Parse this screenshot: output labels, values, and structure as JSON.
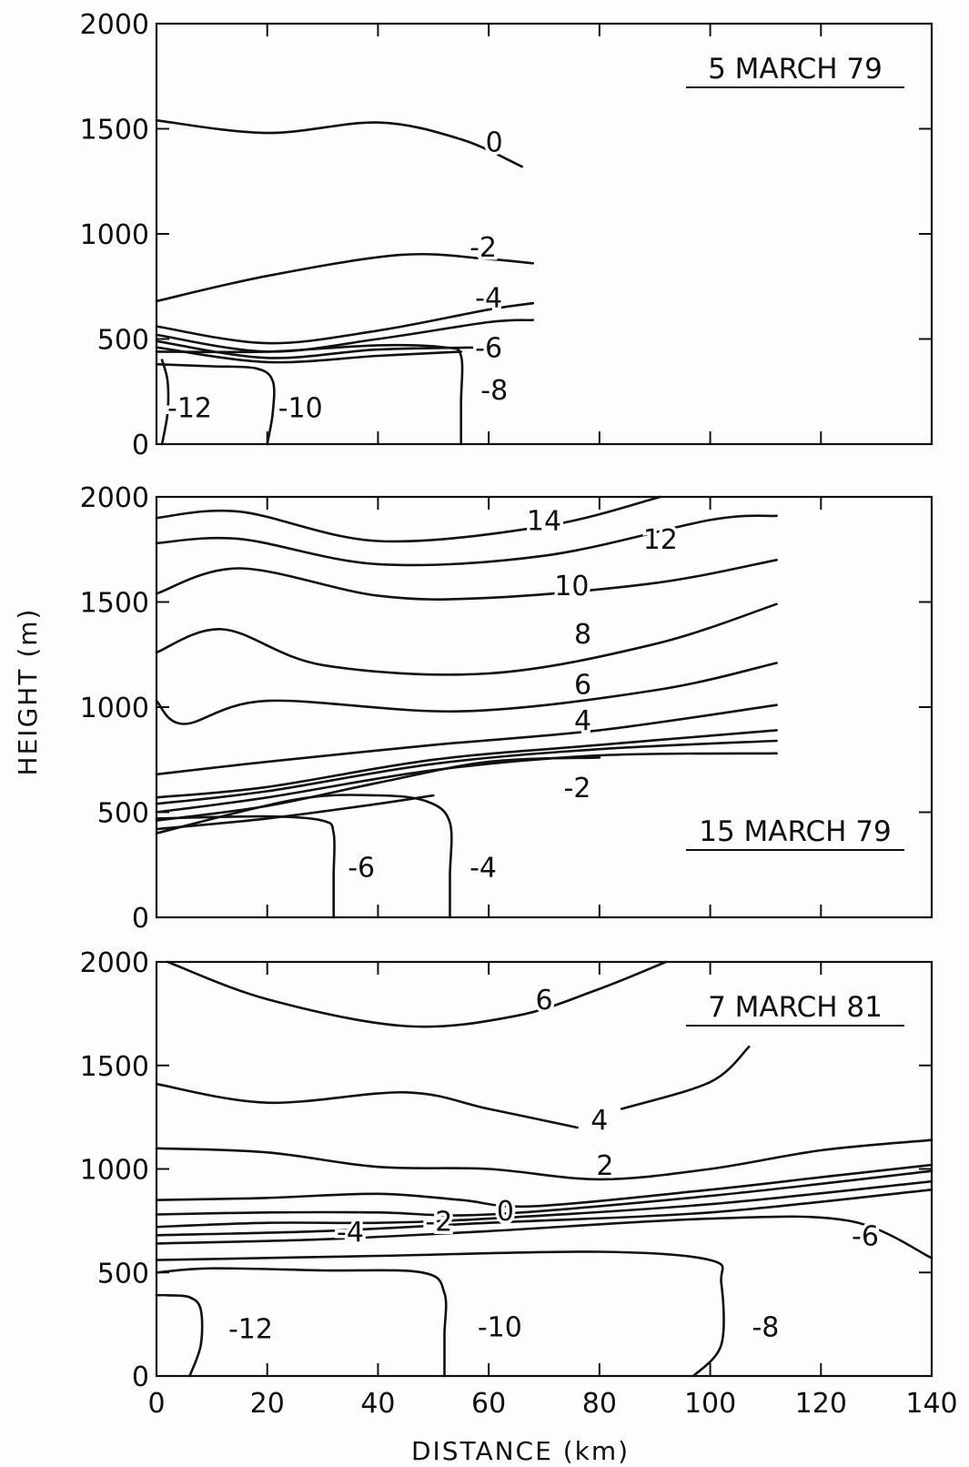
{
  "chart_data": [
    {
      "type": "contour",
      "date": "5 MARCH 79",
      "x_range": [
        0,
        140
      ],
      "y_range": [
        0,
        2000
      ],
      "y_ticks": [
        "0",
        "500",
        "1000",
        "1500",
        "2000"
      ],
      "contours": [
        {
          "level": "0",
          "points": [
            [
              0,
              1540
            ],
            [
              20,
              1480
            ],
            [
              40,
              1530
            ],
            [
              55,
              1450
            ],
            [
              66,
              1320
            ]
          ]
        },
        {
          "level": "-2",
          "points": [
            [
              0,
              680
            ],
            [
              20,
              800
            ],
            [
              44,
              900
            ],
            [
              60,
              880
            ],
            [
              68,
              860
            ]
          ]
        },
        {
          "level": "-4",
          "points": [
            [
              0,
              560
            ],
            [
              20,
              480
            ],
            [
              40,
              540
            ],
            [
              60,
              640
            ],
            [
              68,
              670
            ]
          ]
        },
        {
          "level": "-6",
          "points": [
            [
              0,
              520
            ],
            [
              20,
              440
            ],
            [
              40,
              500
            ],
            [
              60,
              580
            ],
            [
              68,
              590
            ]
          ]
        },
        {
          "level": "",
          "points": [
            [
              0,
              490
            ],
            [
              20,
              410
            ],
            [
              40,
              450
            ],
            [
              60,
              460
            ]
          ]
        },
        {
          "level": "",
          "points": [
            [
              0,
              460
            ],
            [
              20,
              390
            ],
            [
              40,
              420
            ],
            [
              55,
              440
            ]
          ]
        },
        {
          "level": "-8",
          "points": [
            [
              55,
              0
            ],
            [
              55,
              200
            ],
            [
              55,
              420
            ],
            [
              52,
              460
            ],
            [
              40,
              470
            ],
            [
              20,
              440
            ],
            [
              0,
              440
            ]
          ]
        },
        {
          "level": "-10",
          "points": [
            [
              20,
              0
            ],
            [
              21,
              150
            ],
            [
              21,
              300
            ],
            [
              18,
              360
            ],
            [
              10,
              370
            ],
            [
              0,
              380
            ]
          ]
        },
        {
          "level": "-12",
          "points": [
            [
              1,
              0
            ],
            [
              2,
              150
            ],
            [
              2,
              300
            ],
            [
              1,
              400
            ]
          ]
        }
      ],
      "contour_labels": [
        {
          "text": "0",
          "x": 61,
          "y": 1440
        },
        {
          "text": "-2",
          "x": 59,
          "y": 940
        },
        {
          "text": "-4",
          "x": 60,
          "y": 700
        },
        {
          "text": "-6",
          "x": 60,
          "y": 460
        },
        {
          "text": "-8",
          "x": 61,
          "y": 260
        },
        {
          "text": "-10",
          "x": 26,
          "y": 175
        },
        {
          "text": "-12",
          "x": 6,
          "y": 175
        }
      ]
    },
    {
      "type": "contour",
      "date": "15 MARCH 79",
      "x_range": [
        0,
        140
      ],
      "y_range": [
        0,
        2000
      ],
      "y_ticks": [
        "0",
        "500",
        "1000",
        "1500",
        "2000"
      ],
      "contours": [
        {
          "level": "14",
          "points": [
            [
              0,
              1900
            ],
            [
              15,
              1930
            ],
            [
              40,
              1790
            ],
            [
              70,
              1860
            ],
            [
              91,
              2000
            ]
          ]
        },
        {
          "level": "12",
          "points": [
            [
              0,
              1780
            ],
            [
              15,
              1800
            ],
            [
              40,
              1680
            ],
            [
              70,
              1720
            ],
            [
              100,
              1890
            ],
            [
              112,
              1910
            ]
          ]
        },
        {
          "level": "10",
          "points": [
            [
              0,
              1540
            ],
            [
              15,
              1660
            ],
            [
              40,
              1530
            ],
            [
              60,
              1520
            ],
            [
              90,
              1590
            ],
            [
              112,
              1700
            ]
          ]
        },
        {
          "level": "8",
          "points": [
            [
              0,
              1260
            ],
            [
              12,
              1370
            ],
            [
              30,
              1200
            ],
            [
              60,
              1160
            ],
            [
              90,
              1300
            ],
            [
              112,
              1490
            ]
          ]
        },
        {
          "level": "6",
          "points": [
            [
              0,
              1030
            ],
            [
              5,
              920
            ],
            [
              20,
              1030
            ],
            [
              55,
              980
            ],
            [
              90,
              1080
            ],
            [
              112,
              1210
            ]
          ]
        },
        {
          "level": "4",
          "points": [
            [
              0,
              680
            ],
            [
              20,
              740
            ],
            [
              50,
              820
            ],
            [
              80,
              890
            ],
            [
              112,
              1010
            ]
          ]
        },
        {
          "level": "",
          "points": [
            [
              0,
              570
            ],
            [
              20,
              620
            ],
            [
              50,
              750
            ],
            [
              80,
              820
            ],
            [
              112,
              890
            ]
          ]
        },
        {
          "level": "",
          "points": [
            [
              0,
              540
            ],
            [
              20,
              600
            ],
            [
              50,
              730
            ],
            [
              80,
              800
            ],
            [
              112,
              840
            ]
          ]
        },
        {
          "level": "-2",
          "points": [
            [
              0,
              500
            ],
            [
              20,
              570
            ],
            [
              50,
              700
            ],
            [
              80,
              770
            ],
            [
              112,
              780
            ]
          ]
        },
        {
          "level": "",
          "points": [
            [
              0,
              460
            ],
            [
              20,
              530
            ],
            [
              40,
              640
            ],
            [
              60,
              740
            ],
            [
              80,
              760
            ]
          ]
        },
        {
          "level": "",
          "points": [
            [
              0,
              420
            ],
            [
              20,
              470
            ],
            [
              40,
              540
            ],
            [
              50,
              580
            ]
          ]
        },
        {
          "level": "-4",
          "points": [
            [
              53,
              0
            ],
            [
              53,
              200
            ],
            [
              53,
              450
            ],
            [
              49,
              550
            ],
            [
              40,
              580
            ],
            [
              25,
              560
            ],
            [
              0,
              400
            ]
          ]
        },
        {
          "level": "-6",
          "points": [
            [
              32,
              0
            ],
            [
              32,
              200
            ],
            [
              32,
              400
            ],
            [
              30,
              460
            ],
            [
              20,
              480
            ],
            [
              0,
              470
            ]
          ]
        }
      ],
      "contour_labels": [
        {
          "text": "14",
          "x": 70,
          "y": 1890
        },
        {
          "text": "12",
          "x": 91,
          "y": 1800
        },
        {
          "text": "10",
          "x": 75,
          "y": 1580
        },
        {
          "text": "8",
          "x": 77,
          "y": 1350
        },
        {
          "text": "6",
          "x": 77,
          "y": 1110
        },
        {
          "text": "4",
          "x": 77,
          "y": 940
        },
        {
          "text": "-2",
          "x": 76,
          "y": 620
        },
        {
          "text": "-4",
          "x": 59,
          "y": 240
        },
        {
          "text": "-6",
          "x": 37,
          "y": 240
        }
      ]
    },
    {
      "type": "contour",
      "date": "7 MARCH 81",
      "x_range": [
        0,
        140
      ],
      "y_range": [
        0,
        2000
      ],
      "y_ticks": [
        "0",
        "500",
        "1000",
        "1500",
        "2000"
      ],
      "x_ticks": [
        "0",
        "20",
        "40",
        "60",
        "80",
        "100",
        "120",
        "140"
      ],
      "x_label": "DISTANCE (km)",
      "y_label": "HEIGHT (m)",
      "contours": [
        {
          "level": "6",
          "points": [
            [
              2,
              2000
            ],
            [
              20,
              1820
            ],
            [
              45,
              1690
            ],
            [
              65,
              1740
            ],
            [
              80,
              1870
            ],
            [
              92,
              2000
            ]
          ]
        },
        {
          "level": "4",
          "points": [
            [
              0,
              1410
            ],
            [
              20,
              1320
            ],
            [
              45,
              1370
            ],
            [
              60,
              1290
            ],
            [
              76,
              1200
            ]
          ]
        },
        {
          "level": "4",
          "points": [
            [
              84,
              1290
            ],
            [
              100,
              1420
            ],
            [
              107,
              1590
            ]
          ]
        },
        {
          "level": "2",
          "points": [
            [
              0,
              1100
            ],
            [
              20,
              1080
            ],
            [
              40,
              1010
            ],
            [
              60,
              1000
            ],
            [
              80,
              950
            ],
            [
              100,
              1000
            ],
            [
              120,
              1090
            ],
            [
              140,
              1140
            ]
          ]
        },
        {
          "level": "0",
          "points": [
            [
              0,
              850
            ],
            [
              20,
              860
            ],
            [
              40,
              880
            ],
            [
              55,
              850
            ],
            [
              68,
              820
            ],
            [
              100,
              900
            ],
            [
              120,
              960
            ],
            [
              140,
              1020
            ]
          ]
        },
        {
          "level": "-2",
          "points": [
            [
              0,
              780
            ],
            [
              20,
              790
            ],
            [
              40,
              790
            ],
            [
              60,
              780
            ],
            [
              100,
              870
            ],
            [
              140,
              990
            ]
          ]
        },
        {
          "level": "-4",
          "points": [
            [
              0,
              720
            ],
            [
              20,
              740
            ],
            [
              40,
              740
            ],
            [
              60,
              760
            ],
            [
              100,
              830
            ],
            [
              140,
              940
            ]
          ]
        },
        {
          "level": "",
          "points": [
            [
              0,
              680
            ],
            [
              30,
              700
            ],
            [
              60,
              740
            ],
            [
              100,
              790
            ],
            [
              140,
              900
            ]
          ]
        },
        {
          "level": "-6",
          "points": [
            [
              0,
              640
            ],
            [
              30,
              660
            ],
            [
              60,
              700
            ],
            [
              100,
              760
            ],
            [
              125,
              750
            ],
            [
              140,
              570
            ]
          ]
        },
        {
          "level": "-8",
          "points": [
            [
              97,
              0
            ],
            [
              102,
              150
            ],
            [
              102,
              450
            ],
            [
              100,
              560
            ],
            [
              80,
              600
            ],
            [
              40,
              580
            ],
            [
              0,
              560
            ]
          ]
        },
        {
          "level": "-10",
          "points": [
            [
              52,
              0
            ],
            [
              52,
              200
            ],
            [
              52,
              400
            ],
            [
              48,
              500
            ],
            [
              30,
              510
            ],
            [
              10,
              520
            ],
            [
              0,
              500
            ]
          ]
        },
        {
          "level": "-12",
          "points": [
            [
              6,
              0
            ],
            [
              8,
              150
            ],
            [
              8,
              320
            ],
            [
              6,
              380
            ],
            [
              2,
              390
            ],
            [
              0,
              390
            ]
          ]
        }
      ],
      "contour_labels": [
        {
          "text": "6",
          "x": 70,
          "y": 1820
        },
        {
          "text": "4",
          "x": 80,
          "y": 1240
        },
        {
          "text": "2",
          "x": 81,
          "y": 1020
        },
        {
          "text": "0",
          "x": 63,
          "y": 800
        },
        {
          "text": "-2",
          "x": 51,
          "y": 750
        },
        {
          "text": "-4",
          "x": 35,
          "y": 700
        },
        {
          "text": "-6",
          "x": 128,
          "y": 680
        },
        {
          "text": "-8",
          "x": 110,
          "y": 240
        },
        {
          "text": "-10",
          "x": 62,
          "y": 240
        },
        {
          "text": "-12",
          "x": 17,
          "y": 230
        }
      ]
    }
  ]
}
